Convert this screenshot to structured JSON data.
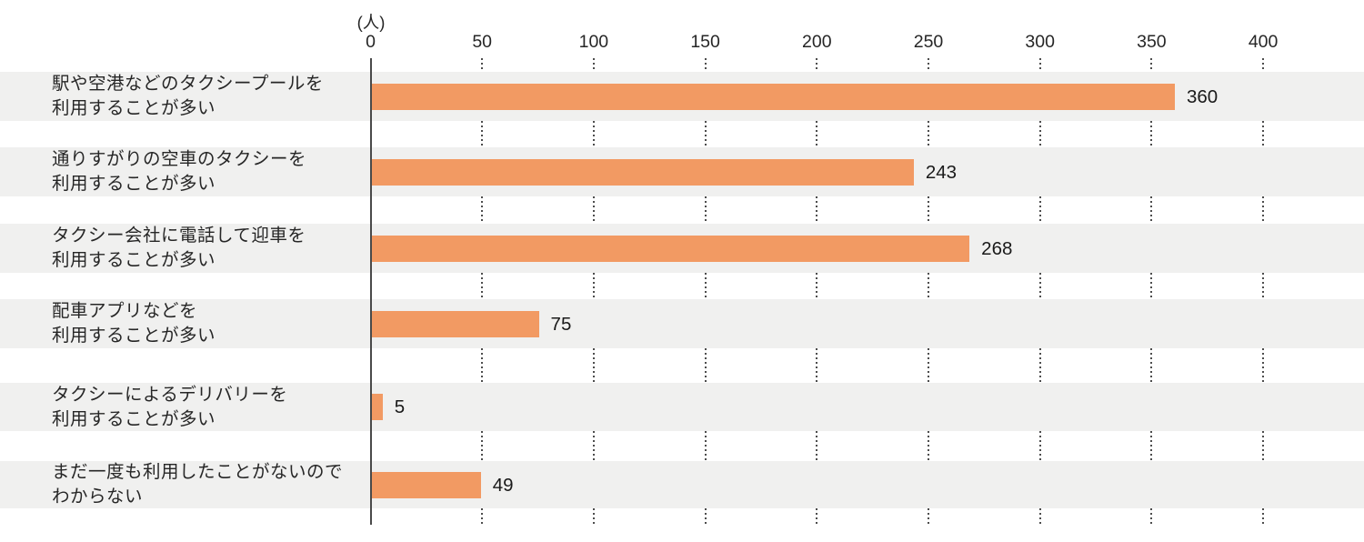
{
  "chart_data": {
    "type": "bar",
    "orientation": "horizontal",
    "title": "",
    "unit_label": "(人)",
    "categories": [
      [
        "駅や空港などのタクシープールを",
        "利用することが多い"
      ],
      [
        "通りすがりの空車のタクシーを",
        "利用することが多い"
      ],
      [
        "タクシー会社に電話して迎車を",
        "利用することが多い"
      ],
      [
        "配車アプリなどを",
        "利用することが多い"
      ],
      [
        "タクシーによるデリバリーを",
        "利用することが多い"
      ],
      [
        "まだ一度も利用したことがないので",
        "わからない"
      ]
    ],
    "values": [
      360,
      243,
      268,
      75,
      5,
      49
    ],
    "xlim": [
      0,
      400
    ],
    "xticks": [
      0,
      50,
      100,
      150,
      200,
      250,
      300,
      350,
      400
    ],
    "grid": "dotted-vertical-in-gaps",
    "legend": "none",
    "colors": {
      "bar": "#F29A63",
      "row_stripe": "#F0F0EF",
      "axis_line": "#4A4A4A",
      "gridline": "#4D4D4D",
      "text": "#262626"
    }
  }
}
